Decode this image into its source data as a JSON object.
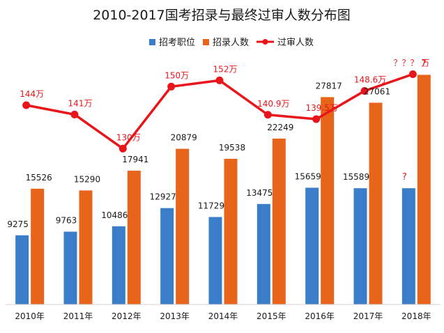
{
  "chart_data": {
    "type": "bar",
    "title": "2010-2017国考招录与最终过审人数分布图",
    "categories": [
      "2010年",
      "2011年",
      "2012年",
      "2013年",
      "2014年",
      "2015年",
      "2016年",
      "2017年",
      "2018年"
    ],
    "legend_position": "top",
    "grid": false,
    "ylim": [
      0,
      35000
    ],
    "series": [
      {
        "name": "招考职位",
        "kind": "bar",
        "color": "#3a7dc9",
        "values": [
          9275,
          9763,
          10486,
          12927,
          11729,
          13475,
          15659,
          15589,
          15589
        ],
        "labels": [
          "9275",
          "9763",
          "10486",
          "12927",
          "11729",
          "13475",
          "15659",
          "15589",
          "?"
        ]
      },
      {
        "name": "招录人数",
        "kind": "bar",
        "color": "#e8641b",
        "values": [
          15526,
          15290,
          17941,
          20879,
          19538,
          22249,
          27817,
          27061,
          30800
        ],
        "labels": [
          "15526",
          "15290",
          "17941",
          "20879",
          "19538",
          "22249",
          "27817",
          "27061",
          "?"
        ]
      },
      {
        "name": "过审人数",
        "kind": "line",
        "color": "#e8151b",
        "unit": "万",
        "values": [
          144,
          141,
          130,
          150,
          152,
          140.9,
          139.5,
          148.6,
          154
        ],
        "labels": [
          "144万",
          "141万",
          "130万",
          "150万",
          "152万",
          "140.9万",
          "139.5万",
          "148.6万",
          "？？？ 万"
        ]
      }
    ]
  }
}
